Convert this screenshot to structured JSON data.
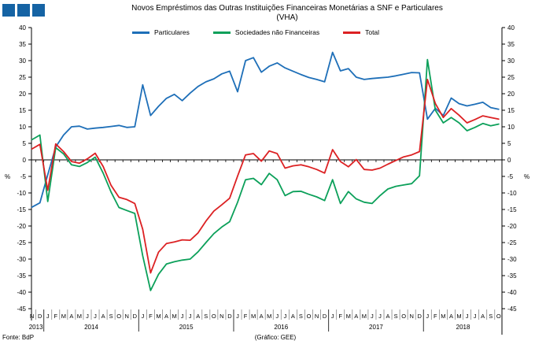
{
  "logo": {
    "square_color": "#1563A4",
    "square_count": 3
  },
  "title": {
    "line1": "Novos Empréstimos das Outras Instituições Financeiras Monetárias a SNF e Particulares",
    "line2": "(VHA)"
  },
  "footer": {
    "source": "Fonte: BdP",
    "credit": "(Gráfico: GEE)"
  },
  "chart_data": {
    "type": "line",
    "title": "Novos Empréstimos das Outras Instituições Financeiras Monetárias a SNF e Particulares (VHA)",
    "y_unit": "%",
    "ylim": [
      -45,
      40
    ],
    "ytick_step": 5,
    "grid": false,
    "legend_position": "top-center",
    "x_start": "2013-11",
    "x_end": "2018-10",
    "month_letters": [
      "N",
      "D",
      "J",
      "F",
      "M",
      "A",
      "M",
      "J",
      "J",
      "A",
      "S",
      "O",
      "N",
      "D",
      "J",
      "F",
      "M",
      "A",
      "M",
      "J",
      "J",
      "A",
      "S",
      "O",
      "N",
      "D",
      "J",
      "F",
      "M",
      "A",
      "M",
      "J",
      "J",
      "A",
      "S",
      "O",
      "N",
      "D",
      "J",
      "F",
      "M",
      "A",
      "M",
      "J",
      "J",
      "A",
      "S",
      "O",
      "N",
      "D",
      "J",
      "F",
      "M",
      "A",
      "M",
      "J",
      "J",
      "A",
      "S",
      "O"
    ],
    "years": [
      {
        "label": "2013",
        "start": 0,
        "count": 2
      },
      {
        "label": "2014",
        "start": 2,
        "count": 12
      },
      {
        "label": "2015",
        "start": 14,
        "count": 12
      },
      {
        "label": "2016",
        "start": 26,
        "count": 12
      },
      {
        "label": "2017",
        "start": 38,
        "count": 12
      },
      {
        "label": "2018",
        "start": 50,
        "count": 10
      }
    ],
    "series": [
      {
        "name": "Particulares",
        "color": "#1E6FB8",
        "values": [
          -14.3,
          -13.0,
          -4.5,
          3.9,
          7.5,
          10.0,
          10.2,
          9.3,
          9.6,
          9.8,
          10.1,
          10.4,
          9.8,
          10.0,
          22.7,
          13.4,
          16.2,
          18.6,
          19.8,
          17.9,
          20.2,
          22.2,
          23.6,
          24.5,
          26.0,
          26.8,
          20.6,
          30.0,
          30.9,
          26.5,
          28.3,
          29.3,
          27.8,
          26.8,
          25.8,
          24.9,
          24.3,
          23.6,
          32.5,
          26.9,
          27.6,
          25.0,
          24.3,
          24.6,
          24.8,
          25.0,
          25.4,
          25.9,
          26.4,
          26.3,
          12.3,
          15.6,
          13.4,
          18.7,
          17.0,
          16.3,
          16.8,
          17.4,
          15.8,
          15.3
        ]
      },
      {
        "name": "Sociedades não Financeiras",
        "color": "#0CA05A",
        "values": [
          6.1,
          7.5,
          -12.6,
          3.7,
          1.8,
          -1.5,
          -2.0,
          -0.8,
          0.8,
          -4.0,
          -9.7,
          -14.4,
          -15.3,
          -16.2,
          -29.0,
          -39.5,
          -34.6,
          -31.5,
          -30.8,
          -30.3,
          -30.0,
          -27.8,
          -25.0,
          -22.3,
          -20.3,
          -18.7,
          -12.8,
          -6.0,
          -5.6,
          -7.5,
          -4.1,
          -6.0,
          -10.8,
          -9.6,
          -9.5,
          -10.4,
          -11.2,
          -12.3,
          -6.0,
          -13.2,
          -9.6,
          -11.8,
          -12.8,
          -13.2,
          -10.8,
          -8.8,
          -8.0,
          -7.6,
          -7.2,
          -4.8,
          30.3,
          15.0,
          11.2,
          12.8,
          11.2,
          8.8,
          9.8,
          11.0,
          10.3,
          10.8
        ]
      },
      {
        "name": "Total",
        "color": "#DC2123",
        "values": [
          3.3,
          4.7,
          -9.2,
          4.8,
          2.5,
          -0.5,
          -1.0,
          0.3,
          2.0,
          -2.0,
          -7.7,
          -11.3,
          -12.0,
          -13.2,
          -21.0,
          -34.2,
          -27.9,
          -25.3,
          -24.8,
          -24.2,
          -24.3,
          -22.1,
          -18.5,
          -15.5,
          -13.6,
          -11.6,
          -4.9,
          1.5,
          1.9,
          -0.4,
          2.7,
          1.9,
          -2.5,
          -1.8,
          -1.5,
          -2.1,
          -2.9,
          -4.0,
          3.1,
          -0.5,
          -2.1,
          0.1,
          -2.9,
          -3.1,
          -2.5,
          -1.3,
          -0.2,
          0.9,
          1.5,
          2.5,
          24.3,
          17.0,
          12.8,
          15.5,
          13.5,
          11.2,
          12.2,
          13.3,
          12.8,
          12.3
        ]
      }
    ]
  }
}
